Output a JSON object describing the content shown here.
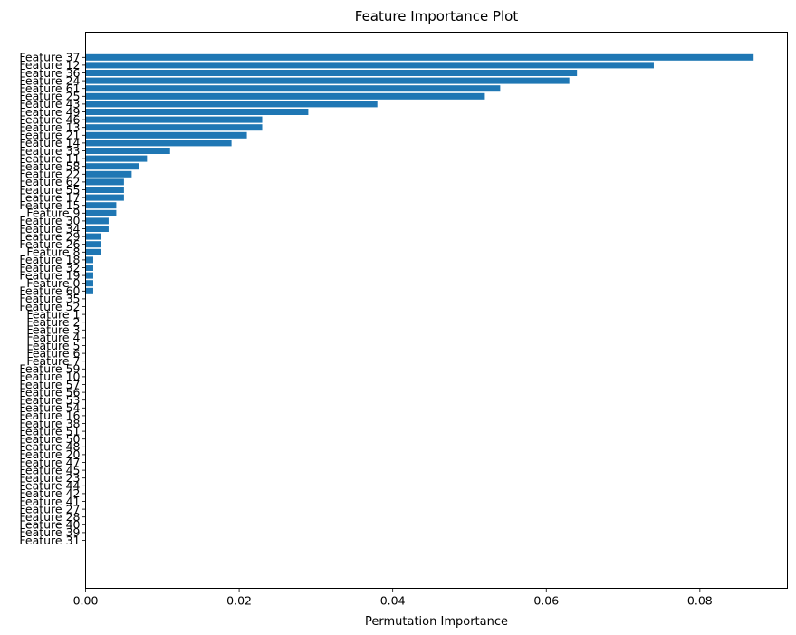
{
  "chart_data": {
    "type": "bar",
    "orientation": "horizontal",
    "title": "Feature Importance Plot",
    "xlabel": "Permutation Importance",
    "ylabel": "",
    "xlim": [
      0,
      0.0914
    ],
    "xticks": [
      0.0,
      0.02,
      0.04,
      0.06,
      0.08
    ],
    "xtick_labels": [
      "0.00",
      "0.02",
      "0.04",
      "0.06",
      "0.08"
    ],
    "grid": false,
    "bar_color": "#1f77b4",
    "categories": [
      "Feature 37",
      "Feature 12",
      "Feature 36",
      "Feature 24",
      "Feature 61",
      "Feature 25",
      "Feature 43",
      "Feature 49",
      "Feature 46",
      "Feature 13",
      "Feature 21",
      "Feature 14",
      "Feature 33",
      "Feature 11",
      "Feature 58",
      "Feature 22",
      "Feature 62",
      "Feature 55",
      "Feature 17",
      "Feature 15",
      "Feature 9",
      "Feature 30",
      "Feature 34",
      "Feature 29",
      "Feature 26",
      "Feature 8",
      "Feature 18",
      "Feature 32",
      "Feature 19",
      "Feature 0",
      "Feature 60",
      "Feature 35",
      "Feature 52",
      "Feature 1",
      "Feature 2",
      "Feature 3",
      "Feature 4",
      "Feature 5",
      "Feature 6",
      "Feature 7",
      "Feature 59",
      "Feature 10",
      "Feature 57",
      "Feature 56",
      "Feature 53",
      "Feature 54",
      "Feature 16",
      "Feature 38",
      "Feature 51",
      "Feature 50",
      "Feature 48",
      "Feature 20",
      "Feature 47",
      "Feature 45",
      "Feature 23",
      "Feature 44",
      "Feature 42",
      "Feature 41",
      "Feature 27",
      "Feature 28",
      "Feature 40",
      "Feature 39",
      "Feature 31"
    ],
    "values": [
      0.087,
      0.074,
      0.064,
      0.063,
      0.054,
      0.052,
      0.038,
      0.029,
      0.023,
      0.023,
      0.021,
      0.019,
      0.011,
      0.008,
      0.007,
      0.006,
      0.005,
      0.005,
      0.005,
      0.004,
      0.004,
      0.003,
      0.003,
      0.002,
      0.002,
      0.002,
      0.001,
      0.001,
      0.001,
      0.001,
      0.001,
      0,
      0,
      0,
      0,
      0,
      0,
      0,
      0,
      0,
      0,
      0,
      0,
      0,
      0,
      0,
      0,
      0,
      0,
      0,
      0,
      0,
      0,
      0,
      0,
      0,
      0,
      0,
      0,
      0,
      0,
      0,
      0
    ]
  }
}
